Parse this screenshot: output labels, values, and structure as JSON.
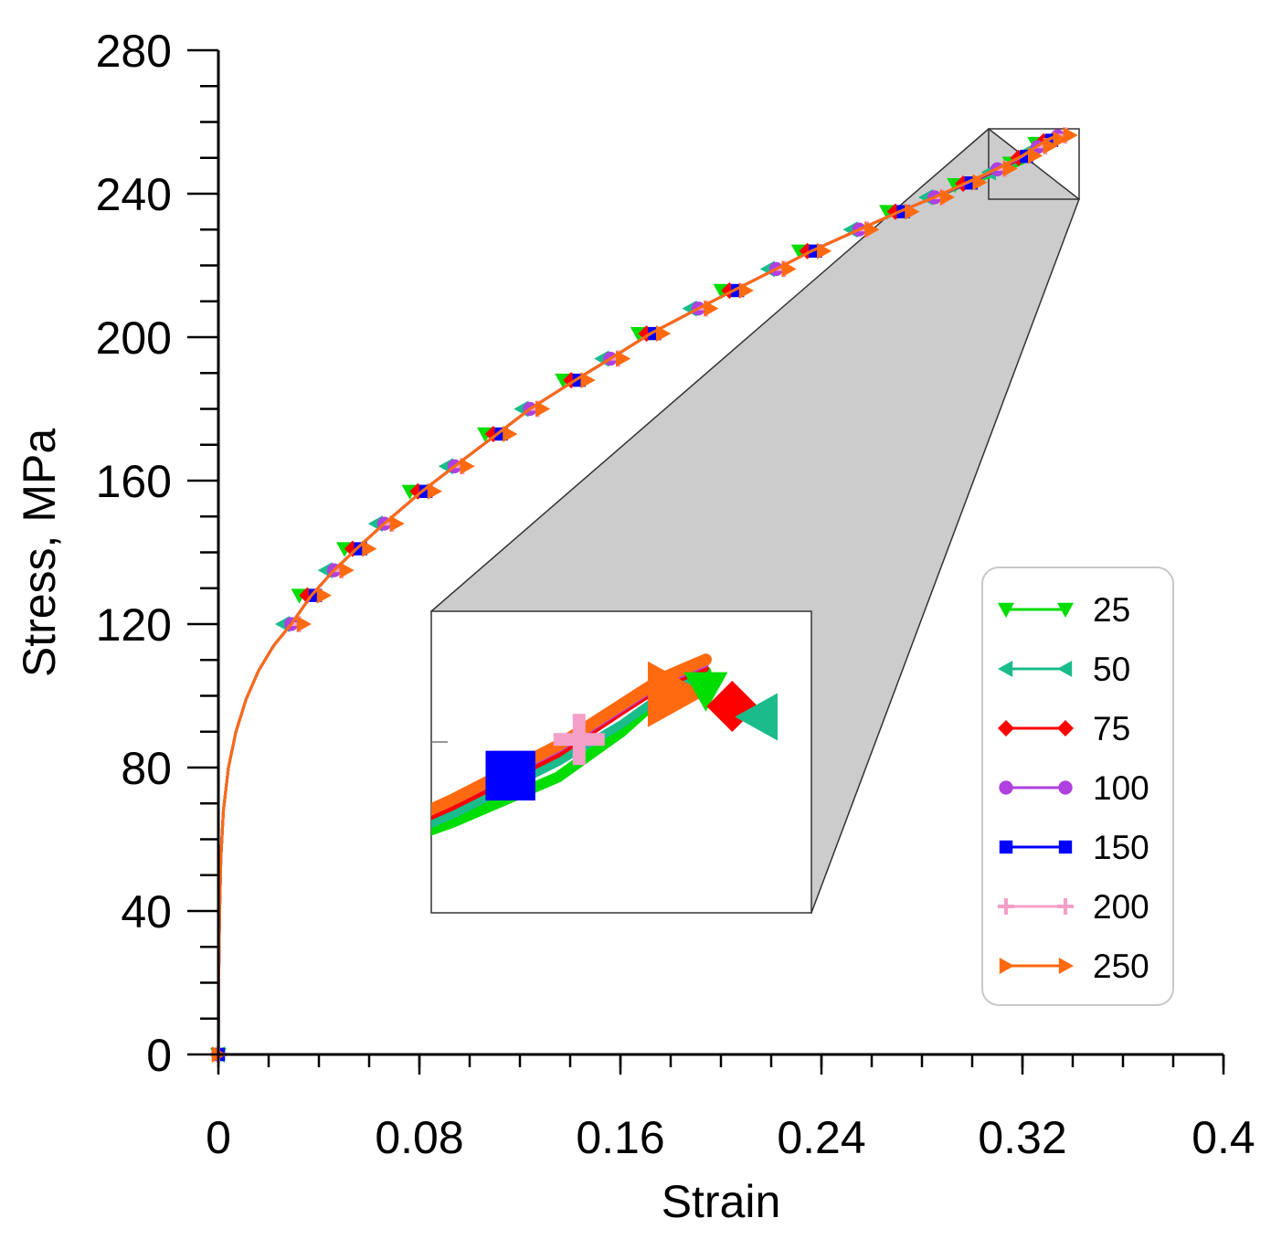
{
  "chart_data": {
    "type": "line",
    "title": "",
    "xlabel": "Strain",
    "ylabel": "Stress, MPa",
    "xlim": [
      0,
      0.4
    ],
    "ylim": [
      0,
      280
    ],
    "xticks": [
      0,
      0.08,
      0.16,
      0.24,
      0.32,
      0.4
    ],
    "xtick_labels": [
      "0",
      "0.08",
      "0.16",
      "0.24",
      "0.32",
      "0.4"
    ],
    "yticks": [
      0,
      40,
      80,
      120,
      160,
      200,
      240,
      280
    ],
    "ytick_labels": [
      "0",
      "40",
      "80",
      "120",
      "160",
      "200",
      "240",
      "280"
    ],
    "grid": false,
    "legend_position": "center-right",
    "x": [
      0,
      0.0001,
      0.0005,
      0.001,
      0.002,
      0.004,
      0.007,
      0.011,
      0.016,
      0.022,
      0.029,
      0.037,
      0.046,
      0.055,
      0.066,
      0.081,
      0.094,
      0.111,
      0.124,
      0.142,
      0.156,
      0.172,
      0.191,
      0.205,
      0.222,
      0.236,
      0.255,
      0.271,
      0.285,
      0.298,
      0.31,
      0.32,
      0.326,
      0.33,
      0.334
    ],
    "series": [
      {
        "name": "25",
        "color": "#00dd00",
        "marker": "triangle-down",
        "values": [
          0,
          20,
          40,
          55,
          68,
          80,
          90,
          99,
          107,
          114,
          120,
          128,
          135,
          141,
          148,
          157,
          164,
          173,
          180,
          188,
          194,
          201,
          208,
          213,
          219,
          224,
          230,
          235,
          239,
          242.5,
          245.5,
          248.5,
          251.5,
          254,
          255.5
        ]
      },
      {
        "name": "50",
        "color": "#1abc8c",
        "marker": "triangle-left",
        "values": [
          0,
          20,
          40,
          55,
          68,
          80,
          90,
          99,
          107,
          114,
          120,
          128,
          135,
          141,
          148,
          157,
          164,
          173,
          180,
          188,
          194,
          201,
          208,
          213,
          219,
          224,
          230,
          235,
          239,
          242.5,
          246,
          249.5,
          252,
          254,
          255.3
        ]
      },
      {
        "name": "75",
        "color": "#ff0000",
        "marker": "diamond",
        "values": [
          0,
          20,
          40,
          55,
          68,
          80,
          90,
          99,
          107,
          114,
          120,
          128,
          135,
          141,
          148,
          157,
          164,
          173,
          180,
          188,
          194,
          201,
          208,
          213,
          219,
          224,
          230,
          235,
          239,
          242.8,
          246.5,
          250,
          252.8,
          254.6,
          255.7
        ]
      },
      {
        "name": "100",
        "color": "#b040e0",
        "marker": "circle",
        "values": [
          0,
          20,
          40,
          55,
          68,
          80,
          90,
          99,
          107,
          114,
          120,
          128,
          135,
          141,
          148,
          157,
          164,
          173,
          180,
          188,
          194,
          201,
          208,
          213,
          219,
          224,
          230,
          235,
          239,
          243,
          246.8,
          250.3,
          253,
          254.8,
          256
        ]
      },
      {
        "name": "150",
        "color": "#0000ff",
        "marker": "square",
        "values": [
          0,
          20,
          40,
          55,
          68,
          80,
          90,
          99,
          107,
          114,
          120,
          128,
          135,
          141,
          148,
          157,
          164,
          173,
          180,
          188,
          194,
          201,
          208,
          213,
          219,
          224,
          230,
          235,
          239,
          243,
          246.8,
          250.4,
          253.1,
          254.9,
          256.1
        ]
      },
      {
        "name": "200",
        "color": "#f4a0c8",
        "marker": "plus",
        "values": [
          0,
          20,
          40,
          55,
          68,
          80,
          90,
          99,
          107,
          114,
          120,
          128,
          135,
          141,
          148,
          157,
          164,
          173,
          180,
          188,
          194,
          201,
          208,
          213,
          219,
          224,
          230,
          235,
          239,
          243.1,
          246.9,
          250.5,
          253.2,
          255,
          256.2
        ]
      },
      {
        "name": "250",
        "color": "#ff6a10",
        "marker": "triangle-right",
        "values": [
          0,
          20,
          40,
          55,
          68,
          80,
          90,
          99,
          107,
          114,
          120,
          128,
          135,
          141,
          148,
          157,
          164,
          173,
          180,
          188,
          194,
          201,
          208,
          213,
          219,
          224,
          230,
          235,
          239,
          243.2,
          247,
          250.6,
          253.3,
          255.1,
          256.3
        ]
      }
    ],
    "inset": {
      "zoom_xlim": [
        0.308,
        0.344
      ],
      "zoom_ylim": [
        239.5,
        259.5
      ],
      "zoom_box_fill": "#cccccc"
    }
  }
}
